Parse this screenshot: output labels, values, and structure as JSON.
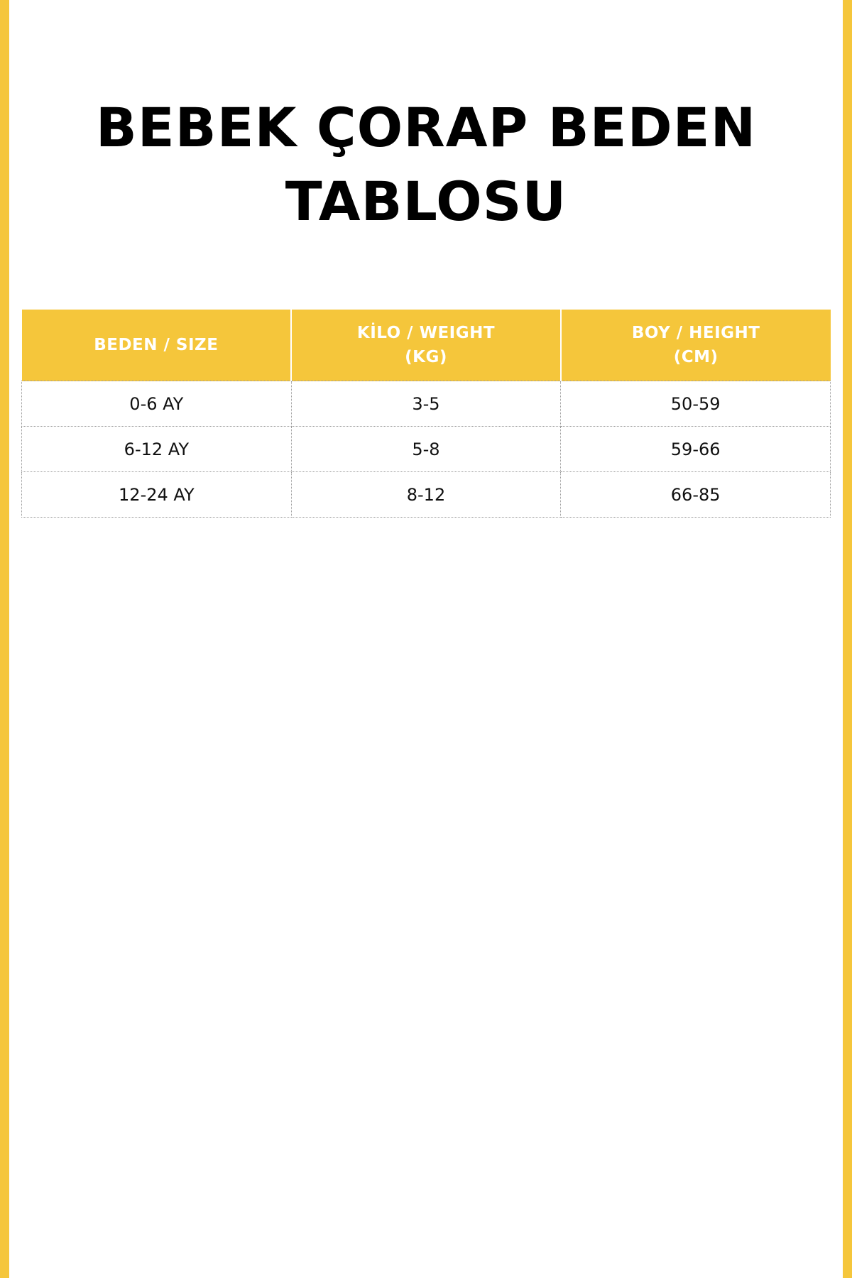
{
  "colors": {
    "accent": "#f5c63b"
  },
  "title": {
    "line1": "BEBEK ÇORAP BEDEN",
    "line2": "TABLOSU"
  },
  "table": {
    "headers": [
      {
        "line1": "BEDEN / SIZE",
        "line2": ""
      },
      {
        "line1": "KİLO / WEIGHT",
        "line2": "(KG)"
      },
      {
        "line1": "BOY / HEIGHT",
        "line2": "(CM)"
      }
    ],
    "rows": [
      [
        "0-6 AY",
        "3-5",
        "50-59"
      ],
      [
        "6-12 AY",
        "5-8",
        "59-66"
      ],
      [
        "12-24 AY",
        "8-12",
        "66-85"
      ]
    ]
  }
}
